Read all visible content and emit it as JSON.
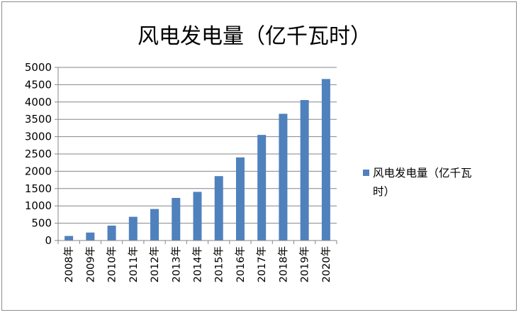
{
  "chart_data": {
    "type": "bar",
    "title": "风电发电量（亿千瓦时）",
    "categories": [
      "2008年",
      "2009年",
      "2010年",
      "2011年",
      "2012年",
      "2013年",
      "2014年",
      "2015年",
      "2016年",
      "2017年",
      "2018年",
      "2019年",
      "2020年"
    ],
    "series": [
      {
        "name": "风电发电量（亿千瓦时）",
        "values": [
          131,
          230,
          430,
          685,
          910,
          1230,
          1405,
          1860,
          2400,
          3050,
          3660,
          4057,
          4665
        ]
      }
    ],
    "yticks": [
      "0",
      "500",
      "1000",
      "1500",
      "2000",
      "2500",
      "3000",
      "3500",
      "4000",
      "4500",
      "5000"
    ],
    "ylim": [
      0,
      5000
    ],
    "grid": true,
    "legend": "right",
    "colors": {
      "bar": "#4f81bd",
      "grid": "#868686",
      "axis": "#868686"
    }
  }
}
